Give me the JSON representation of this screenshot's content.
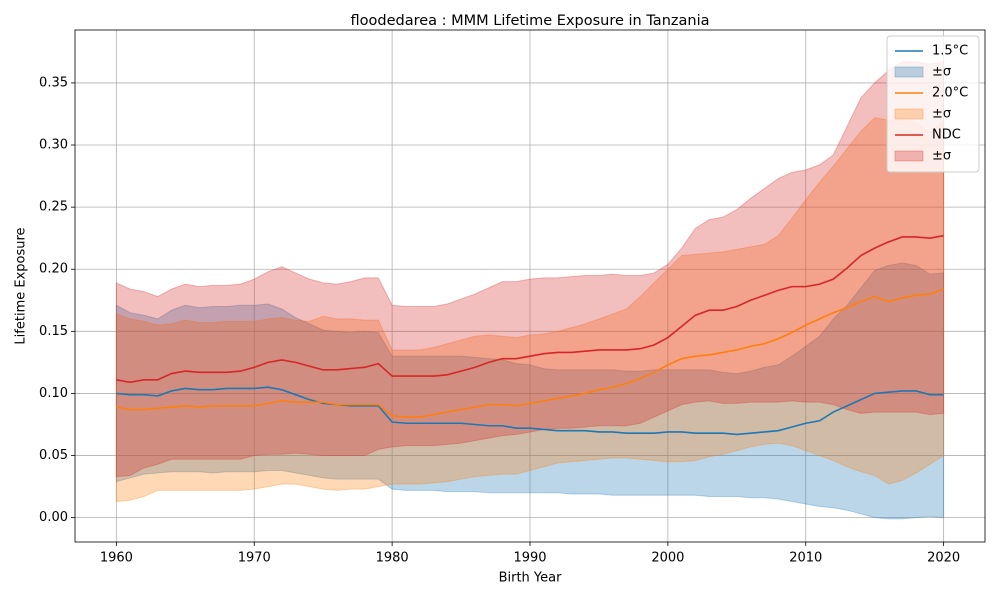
{
  "chart_data": {
    "type": "line",
    "title": "floodedarea : MMM Lifetime Exposure in Tanzania",
    "x_label": "Birth Year",
    "y_label": "Lifetime Exposure",
    "x": [
      1960,
      1961,
      1962,
      1963,
      1964,
      1965,
      1966,
      1967,
      1968,
      1969,
      1970,
      1971,
      1972,
      1973,
      1974,
      1975,
      1976,
      1977,
      1978,
      1979,
      1980,
      1981,
      1982,
      1983,
      1984,
      1985,
      1986,
      1987,
      1988,
      1989,
      1990,
      1991,
      1992,
      1993,
      1994,
      1995,
      1996,
      1997,
      1998,
      1999,
      2000,
      2001,
      2002,
      2003,
      2004,
      2005,
      2006,
      2007,
      2008,
      2009,
      2010,
      2011,
      2012,
      2013,
      2014,
      2015,
      2016,
      2017,
      2018,
      2019,
      2020
    ],
    "xlim": [
      1957,
      2023
    ],
    "xticks": [
      1960,
      1970,
      1980,
      1990,
      2000,
      2010,
      2020
    ],
    "ylim": [
      -0.0196,
      0.3926
    ],
    "yticks": [
      {
        "value": 0,
        "label": "0.00"
      },
      {
        "value": 0.05,
        "label": "0.05"
      },
      {
        "value": 0.1,
        "label": "0.10"
      },
      {
        "value": 0.15,
        "label": "0.15"
      },
      {
        "value": 0.2,
        "label": "0.20"
      },
      {
        "value": 0.25,
        "label": "0.25"
      },
      {
        "value": 0.3,
        "label": "0.30"
      },
      {
        "value": 0.35,
        "label": "0.35"
      }
    ],
    "grid": true,
    "legend": "upper right",
    "band_opacity": 0.3,
    "series": [
      {
        "name": "1.5°C",
        "color": "#1f77b4",
        "band_name": "±σ",
        "values": [
          0.1,
          0.099,
          0.099,
          0.098,
          0.102,
          0.104,
          0.103,
          0.103,
          0.104,
          0.104,
          0.104,
          0.105,
          0.103,
          0.099,
          0.095,
          0.092,
          0.091,
          0.09,
          0.09,
          0.09,
          0.077,
          0.076,
          0.076,
          0.076,
          0.076,
          0.076,
          0.075,
          0.074,
          0.074,
          0.072,
          0.072,
          0.071,
          0.07,
          0.07,
          0.07,
          0.069,
          0.069,
          0.068,
          0.068,
          0.068,
          0.069,
          0.069,
          0.068,
          0.068,
          0.068,
          0.067,
          0.068,
          0.069,
          0.07,
          0.073,
          0.076,
          0.078,
          0.085,
          0.09,
          0.095,
          0.1,
          0.101,
          0.102,
          0.102,
          0.099,
          0.099
        ],
        "upper": [
          0.171,
          0.165,
          0.163,
          0.16,
          0.167,
          0.171,
          0.169,
          0.17,
          0.17,
          0.171,
          0.171,
          0.172,
          0.168,
          0.161,
          0.156,
          0.151,
          0.15,
          0.149,
          0.15,
          0.149,
          0.13,
          0.13,
          0.13,
          0.13,
          0.13,
          0.13,
          0.129,
          0.128,
          0.127,
          0.124,
          0.123,
          0.12,
          0.119,
          0.119,
          0.119,
          0.119,
          0.119,
          0.118,
          0.118,
          0.119,
          0.119,
          0.119,
          0.119,
          0.119,
          0.117,
          0.116,
          0.118,
          0.121,
          0.123,
          0.13,
          0.138,
          0.146,
          0.16,
          0.171,
          0.185,
          0.199,
          0.203,
          0.205,
          0.203,
          0.196,
          0.197
        ],
        "lower": [
          0.029,
          0.032,
          0.035,
          0.036,
          0.037,
          0.037,
          0.037,
          0.036,
          0.037,
          0.037,
          0.037,
          0.038,
          0.038,
          0.036,
          0.034,
          0.032,
          0.031,
          0.031,
          0.031,
          0.031,
          0.023,
          0.022,
          0.022,
          0.022,
          0.021,
          0.021,
          0.021,
          0.02,
          0.02,
          0.02,
          0.02,
          0.02,
          0.02,
          0.019,
          0.019,
          0.019,
          0.018,
          0.018,
          0.018,
          0.018,
          0.018,
          0.018,
          0.018,
          0.017,
          0.017,
          0.017,
          0.016,
          0.016,
          0.015,
          0.013,
          0.011,
          0.009,
          0.008,
          0.006,
          0.003,
          0.0,
          -0.001,
          -0.001,
          0.0,
          0.001,
          0.0
        ]
      },
      {
        "name": "2.0°C",
        "color": "#ff7f0e",
        "band_name": "±σ",
        "values": [
          0.089,
          0.087,
          0.087,
          0.088,
          0.089,
          0.09,
          0.089,
          0.09,
          0.09,
          0.09,
          0.09,
          0.092,
          0.094,
          0.093,
          0.093,
          0.093,
          0.091,
          0.091,
          0.091,
          0.091,
          0.082,
          0.081,
          0.081,
          0.083,
          0.085,
          0.087,
          0.089,
          0.091,
          0.091,
          0.09,
          0.092,
          0.094,
          0.096,
          0.098,
          0.1,
          0.103,
          0.105,
          0.108,
          0.112,
          0.117,
          0.123,
          0.128,
          0.13,
          0.131,
          0.133,
          0.135,
          0.138,
          0.14,
          0.144,
          0.149,
          0.155,
          0.16,
          0.165,
          0.169,
          0.174,
          0.178,
          0.174,
          0.177,
          0.179,
          0.18,
          0.184
        ],
        "upper": [
          0.164,
          0.16,
          0.158,
          0.155,
          0.156,
          0.159,
          0.157,
          0.157,
          0.158,
          0.158,
          0.158,
          0.16,
          0.161,
          0.159,
          0.158,
          0.162,
          0.16,
          0.16,
          0.159,
          0.159,
          0.135,
          0.135,
          0.135,
          0.137,
          0.14,
          0.143,
          0.146,
          0.147,
          0.146,
          0.145,
          0.147,
          0.148,
          0.15,
          0.153,
          0.156,
          0.16,
          0.164,
          0.168,
          0.178,
          0.189,
          0.2,
          0.211,
          0.212,
          0.213,
          0.214,
          0.216,
          0.218,
          0.22,
          0.227,
          0.241,
          0.256,
          0.27,
          0.283,
          0.297,
          0.311,
          0.322,
          0.32,
          0.32,
          0.318,
          0.31,
          0.32
        ],
        "lower": [
          0.013,
          0.014,
          0.017,
          0.022,
          0.022,
          0.022,
          0.022,
          0.022,
          0.022,
          0.022,
          0.023,
          0.025,
          0.027,
          0.027,
          0.025,
          0.023,
          0.022,
          0.023,
          0.023,
          0.025,
          0.027,
          0.027,
          0.027,
          0.028,
          0.029,
          0.031,
          0.033,
          0.034,
          0.035,
          0.035,
          0.038,
          0.041,
          0.044,
          0.045,
          0.046,
          0.047,
          0.048,
          0.048,
          0.047,
          0.046,
          0.045,
          0.045,
          0.046,
          0.049,
          0.051,
          0.054,
          0.057,
          0.059,
          0.06,
          0.058,
          0.054,
          0.05,
          0.046,
          0.041,
          0.037,
          0.034,
          0.027,
          0.03,
          0.036,
          0.043,
          0.05
        ]
      },
      {
        "name": "NDC",
        "color": "#d62728",
        "band_name": "±σ",
        "values": [
          0.111,
          0.109,
          0.111,
          0.111,
          0.116,
          0.118,
          0.117,
          0.117,
          0.117,
          0.118,
          0.121,
          0.125,
          0.127,
          0.125,
          0.122,
          0.119,
          0.119,
          0.12,
          0.121,
          0.124,
          0.114,
          0.114,
          0.114,
          0.114,
          0.115,
          0.118,
          0.121,
          0.125,
          0.128,
          0.128,
          0.13,
          0.132,
          0.133,
          0.133,
          0.134,
          0.135,
          0.135,
          0.135,
          0.136,
          0.139,
          0.145,
          0.154,
          0.163,
          0.167,
          0.167,
          0.17,
          0.175,
          0.179,
          0.183,
          0.186,
          0.186,
          0.188,
          0.192,
          0.201,
          0.211,
          0.217,
          0.222,
          0.226,
          0.226,
          0.225,
          0.227
        ],
        "upper": [
          0.189,
          0.184,
          0.182,
          0.178,
          0.184,
          0.188,
          0.186,
          0.187,
          0.187,
          0.188,
          0.192,
          0.198,
          0.202,
          0.197,
          0.192,
          0.189,
          0.188,
          0.19,
          0.193,
          0.193,
          0.171,
          0.17,
          0.17,
          0.17,
          0.172,
          0.176,
          0.18,
          0.185,
          0.19,
          0.19,
          0.192,
          0.193,
          0.193,
          0.194,
          0.195,
          0.195,
          0.196,
          0.195,
          0.195,
          0.197,
          0.204,
          0.217,
          0.233,
          0.24,
          0.242,
          0.248,
          0.257,
          0.265,
          0.273,
          0.278,
          0.28,
          0.284,
          0.292,
          0.315,
          0.338,
          0.35,
          0.36,
          0.367,
          0.367,
          0.365,
          0.367
        ],
        "lower": [
          0.033,
          0.034,
          0.04,
          0.043,
          0.047,
          0.047,
          0.047,
          0.047,
          0.047,
          0.047,
          0.05,
          0.051,
          0.051,
          0.052,
          0.051,
          0.05,
          0.05,
          0.05,
          0.05,
          0.055,
          0.057,
          0.058,
          0.058,
          0.058,
          0.059,
          0.06,
          0.062,
          0.064,
          0.066,
          0.067,
          0.069,
          0.071,
          0.072,
          0.072,
          0.073,
          0.074,
          0.074,
          0.074,
          0.076,
          0.081,
          0.086,
          0.091,
          0.093,
          0.094,
          0.092,
          0.092,
          0.093,
          0.093,
          0.093,
          0.094,
          0.093,
          0.093,
          0.091,
          0.087,
          0.084,
          0.085,
          0.085,
          0.085,
          0.085,
          0.083,
          0.084
        ]
      }
    ]
  }
}
